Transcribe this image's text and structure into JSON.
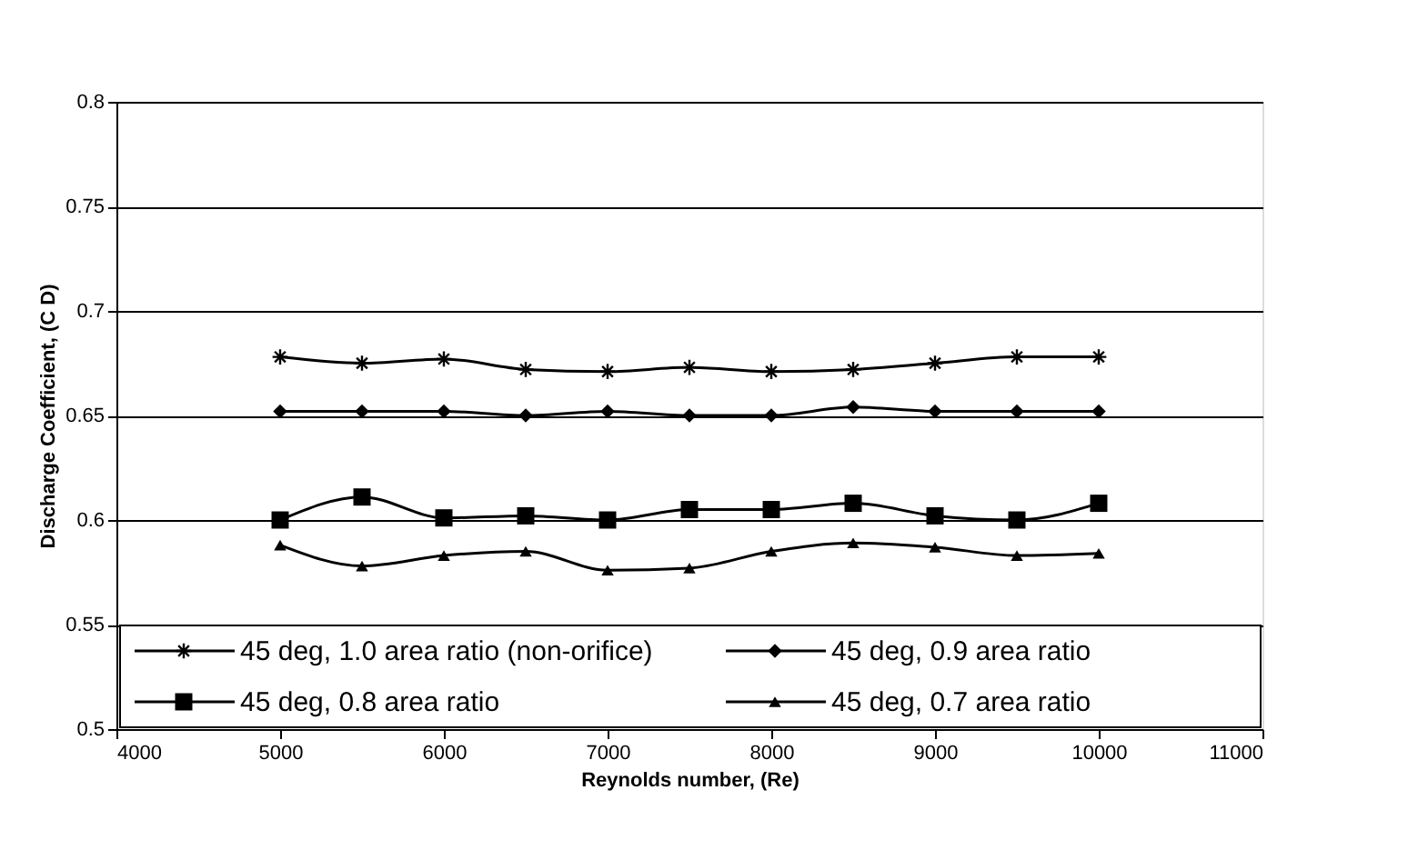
{
  "chart_data": {
    "type": "line",
    "xlabel": "Reynolds number, (Re)",
    "ylabel": "Discharge Coefficient, (C D)",
    "x": [
      5000,
      5500,
      6000,
      6500,
      7000,
      7500,
      8000,
      8500,
      9000,
      9500,
      10000
    ],
    "xlim": [
      4000,
      11000
    ],
    "xticks": [
      4000,
      5000,
      6000,
      7000,
      8000,
      9000,
      10000,
      11000
    ],
    "ylim": [
      0.5,
      0.8
    ],
    "yticks": [
      0.5,
      0.55,
      0.6,
      0.65,
      0.7,
      0.75,
      0.8
    ],
    "grid": "y",
    "legend": "bottom",
    "line_style": "solid",
    "series": [
      {
        "name": "45 deg, 1.0 area ratio (non-orifice)",
        "color": "#000000",
        "marker": "cross",
        "values": [
          0.678,
          0.675,
          0.677,
          0.672,
          0.671,
          0.673,
          0.671,
          0.672,
          0.675,
          0.678,
          0.678
        ]
      },
      {
        "name": "45 deg, 0.9 area ratio",
        "color": "#000000",
        "marker": "diamond",
        "values": [
          0.652,
          0.652,
          0.652,
          0.65,
          0.652,
          0.65,
          0.65,
          0.654,
          0.652,
          0.652,
          0.652
        ]
      },
      {
        "name": "45 deg, 0.8 area ratio",
        "color": "#000000",
        "marker": "square",
        "values": [
          0.6,
          0.611,
          0.601,
          0.602,
          0.6,
          0.605,
          0.605,
          0.608,
          0.602,
          0.6,
          0.608
        ]
      },
      {
        "name": "45 deg, 0.7 area ratio",
        "color": "#000000",
        "marker": "triangle",
        "values": [
          0.588,
          0.578,
          0.583,
          0.585,
          0.576,
          0.577,
          0.585,
          0.589,
          0.587,
          0.583,
          0.584
        ]
      }
    ]
  }
}
